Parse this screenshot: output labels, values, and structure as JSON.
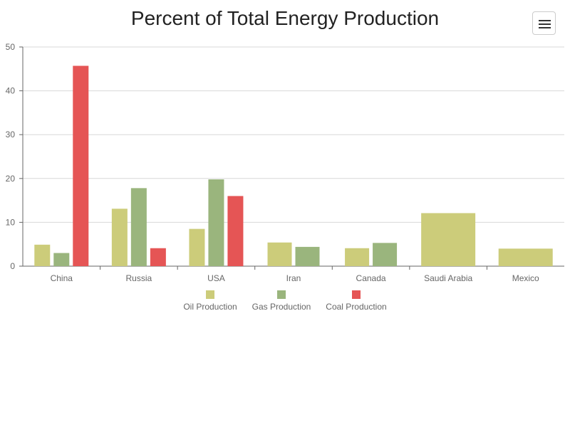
{
  "chart_data": {
    "type": "bar",
    "title": "Percent of Total Energy Production",
    "xlabel": "",
    "ylabel": "",
    "ylim": [
      0,
      50
    ],
    "yticks": [
      0,
      10,
      20,
      30,
      40,
      50
    ],
    "grid": true,
    "legend_position": "bottom",
    "categories": [
      "China",
      "Russia",
      "USA",
      "Iran",
      "Canada",
      "Saudi Arabia",
      "Mexico"
    ],
    "series": [
      {
        "name": "Oil Production",
        "color": "#cccc7a",
        "values": [
          4.9,
          13.1,
          8.5,
          5.4,
          4.1,
          12.1,
          4.0
        ]
      },
      {
        "name": "Gas Production",
        "color": "#9ab57d",
        "values": [
          3.0,
          17.8,
          19.8,
          4.4,
          5.3,
          null,
          null
        ]
      },
      {
        "name": "Coal Production",
        "color": "#e55555",
        "values": [
          45.7,
          4.1,
          16.0,
          null,
          null,
          null,
          null
        ]
      }
    ]
  },
  "menu": {
    "icon": "hamburger-menu-icon"
  }
}
